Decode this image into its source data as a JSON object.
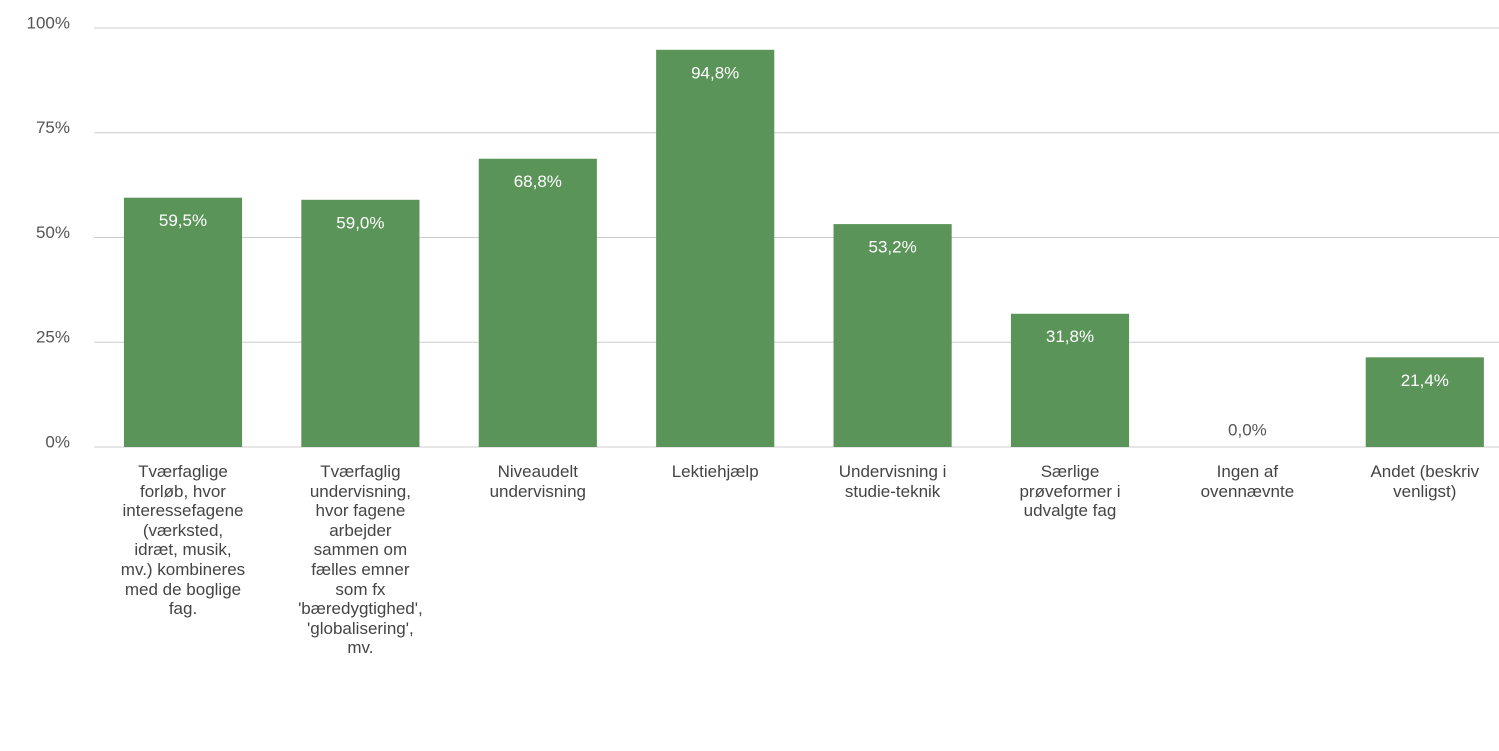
{
  "chart_data": {
    "type": "bar",
    "categories": [
      "Tværfaglige forløb, hvor interessefagene (værksted, idræt, musik, mv.) kombineres med de boglige fag.",
      "Tværfaglig undervisning, hvor fagene arbejder sammen om fælles emner som fx 'bæredygtighed', 'globalisering', mv.",
      "Niveaudelt undervisning",
      "Lektiehjælp",
      "Undervisning i studie-teknik",
      "Særlige prøveformer i udvalgte fag",
      "Ingen af ovennævnte",
      "Andet (beskriv venligst)"
    ],
    "values": [
      59.5,
      59.0,
      68.8,
      94.8,
      53.2,
      31.8,
      0.0,
      21.4
    ],
    "value_labels": [
      "59,5%",
      "59,0%",
      "68,8%",
      "94,8%",
      "53,2%",
      "31,8%",
      "0,0%",
      "21,4%"
    ],
    "color": "#5b9459",
    "ylim": [
      0,
      100
    ],
    "yticks": [
      {
        "value": 0,
        "label": "0%"
      },
      {
        "value": 25,
        "label": "25%"
      },
      {
        "value": 50,
        "label": "50%"
      },
      {
        "value": 75,
        "label": "75%"
      },
      {
        "value": 100,
        "label": "100%"
      }
    ],
    "grid": true
  }
}
